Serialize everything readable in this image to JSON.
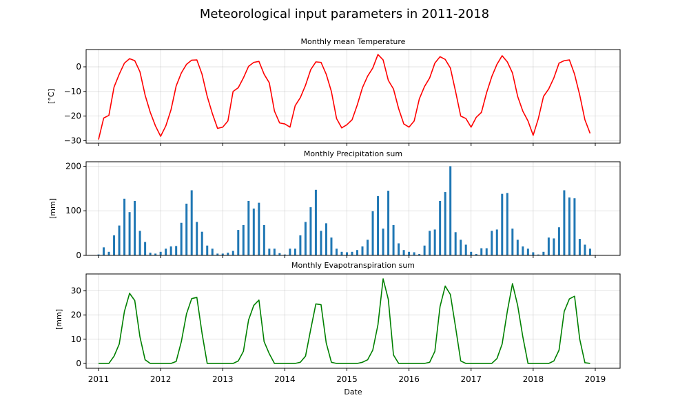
{
  "figure": {
    "title": "Meteorological input parameters in 2011-2018",
    "xlabel": "Date"
  },
  "chart_data": [
    {
      "type": "line",
      "title": "Monthly mean Temperature",
      "ylabel": "[°C]",
      "color": "#ff0000",
      "ylim": [
        -31,
        7
      ],
      "yticks": [
        0,
        -10,
        -20,
        -30
      ],
      "ytick_labels": [
        "0",
        "−10",
        "−20",
        "−30"
      ],
      "xlim": [
        2010.8,
        2019.4
      ],
      "xticks": [
        2011,
        2012,
        2013,
        2014,
        2015,
        2016,
        2017,
        2018,
        2019
      ],
      "xtick_labels": [
        "2011",
        "2012",
        "2013",
        "2014",
        "2015",
        "2016",
        "2017",
        "2018",
        "2019"
      ],
      "x_start": "2011-01",
      "x_step": "1 month",
      "values": [
        -29.5,
        -20.8,
        -19.7,
        -8.2,
        -3,
        1.5,
        3.3,
        2.5,
        -2,
        -11.5,
        -18.5,
        -24,
        -28.2,
        -24,
        -17.5,
        -7.8,
        -2.5,
        1,
        2.7,
        2.8,
        -3,
        -12,
        -19,
        -25,
        -24.5,
        -22,
        -10,
        -8.5,
        -4.5,
        0.2,
        1.8,
        2.2,
        -3,
        -6.5,
        -18,
        -22.8,
        -23.2,
        -24.5,
        -15.8,
        -12.5,
        -7.5,
        -1.2,
        2,
        1.8,
        -3,
        -10,
        -21,
        -24.8,
        -23.5,
        -21.5,
        -15.5,
        -8.5,
        -3.8,
        -0.5,
        5,
        2.8,
        -5.5,
        -9,
        -17,
        -23.2,
        -24.5,
        -22,
        -13,
        -8,
        -4.5,
        1.5,
        4.1,
        3,
        -0.5,
        -10,
        -20,
        -21,
        -24.5,
        -20.5,
        -18.5,
        -10.5,
        -4,
        1,
        4.5,
        2,
        -2.5,
        -12,
        -18,
        -22,
        -27.8,
        -21,
        -12,
        -9,
        -4.5,
        1.5,
        2.5,
        2.8,
        -3,
        -11.5,
        -21.5,
        -27
      ]
    },
    {
      "type": "bar",
      "title": "Monthly Precipitation sum",
      "ylabel": "[mm]",
      "color": "#1f77b4",
      "ylim": [
        0,
        210
      ],
      "yticks": [
        0,
        100,
        200
      ],
      "ytick_labels": [
        "0",
        "100",
        "200"
      ],
      "xlim": [
        2010.8,
        2019.4
      ],
      "x_start": "2011-01",
      "x_step": "1 month",
      "values": [
        2,
        18,
        8,
        45,
        67,
        127,
        97,
        122,
        55,
        30,
        6,
        4,
        8,
        15,
        20,
        21,
        73,
        116,
        146,
        75,
        53,
        22,
        15,
        4,
        4,
        6,
        10,
        57,
        68,
        122,
        105,
        118,
        68,
        15,
        15,
        5,
        2,
        15,
        15,
        45,
        75,
        108,
        147,
        55,
        72,
        40,
        15,
        8,
        7,
        8,
        12,
        20,
        35,
        99,
        133,
        60,
        145,
        68,
        27,
        12,
        8,
        7,
        3,
        22,
        55,
        58,
        122,
        142,
        200,
        52,
        35,
        24,
        8,
        3,
        16,
        16,
        55,
        58,
        138,
        140,
        60,
        35,
        20,
        15,
        7,
        2,
        8,
        40,
        38,
        63,
        146,
        130,
        128,
        37,
        24,
        15
      ]
    },
    {
      "type": "line",
      "title": "Monthly Evapotranspiration sum",
      "ylabel": "[mm]",
      "color": "#008000",
      "ylim": [
        -2,
        37
      ],
      "yticks": [
        0,
        10,
        20,
        30
      ],
      "ytick_labels": [
        "0",
        "10",
        "20",
        "30"
      ],
      "xlim": [
        2010.8,
        2019.4
      ],
      "xticks": [
        2011,
        2012,
        2013,
        2014,
        2015,
        2016,
        2017,
        2018,
        2019
      ],
      "xtick_labels": [
        "2011",
        "2012",
        "2013",
        "2014",
        "2015",
        "2016",
        "2017",
        "2018",
        "2019"
      ],
      "x_start": "2011-01",
      "x_step": "1 month",
      "values": [
        0,
        0,
        0,
        3,
        8,
        21.5,
        29,
        26,
        11,
        1.5,
        0,
        0,
        0,
        0,
        0,
        0.8,
        9,
        20.5,
        26.8,
        27.3,
        12.5,
        0,
        0,
        0,
        0,
        0,
        0,
        1,
        5,
        18,
        24,
        26.2,
        9,
        4,
        0,
        0,
        0,
        0,
        0,
        0.5,
        3,
        14,
        24.6,
        24.3,
        8.5,
        0.5,
        0,
        0,
        0,
        0,
        0,
        0.5,
        1.5,
        5.5,
        16,
        35,
        26.5,
        3.5,
        0,
        0,
        0,
        0,
        0,
        0,
        0.5,
        5,
        23.5,
        32,
        28.5,
        15,
        1,
        0,
        0,
        0,
        0,
        0,
        0,
        2,
        8,
        21.5,
        33,
        24,
        11,
        0,
        0,
        0,
        0,
        0,
        1,
        5.5,
        21.5,
        26.7,
        27.8,
        10,
        0.3,
        0
      ]
    }
  ]
}
